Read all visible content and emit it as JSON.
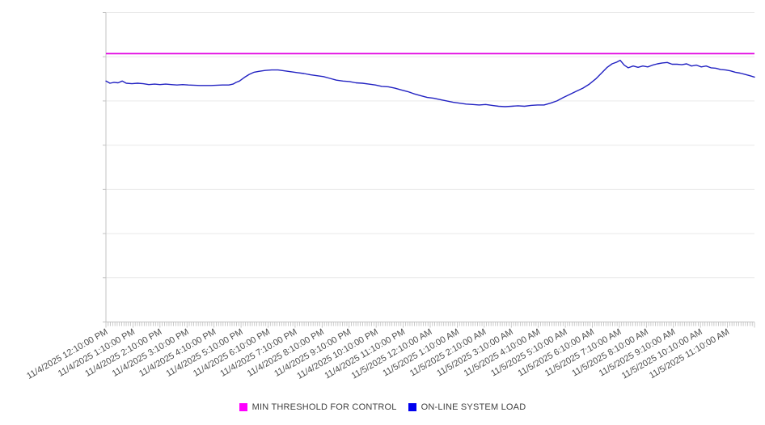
{
  "chart_data": {
    "type": "line",
    "grid": true,
    "legend_position": "bottom-center",
    "colors": {
      "background": "#ffffff",
      "grid": "#e9e9e9",
      "axis": "#c3c3c3",
      "tick": "#bdbdbd",
      "label_text": "#4d4d4d",
      "threshold_magenta": "#e000e0",
      "threshold_legend_magenta": "#ff00ff",
      "load_blue": "#2222c2",
      "load_legend_blue": "#0000ee"
    },
    "x_axis": {
      "hours_span": 24,
      "labeled_tick_interval": "1 hour",
      "minor_tick_interval_min": 5,
      "minor_tick_count": 288,
      "label_rotation_deg": -30,
      "labels": [
        "11/4/2025 12:10:00 PM",
        "11/4/2025 1:10:00 PM",
        "11/4/2025 2:10:00 PM",
        "11/4/2025 3:10:00 PM",
        "11/4/2025 4:10:00 PM",
        "11/4/2025 5:10:00 PM",
        "11/4/2025 6:10:00 PM",
        "11/4/2025 7:10:00 PM",
        "11/4/2025 8:10:00 PM",
        "11/4/2025 9:10:00 PM",
        "11/4/2025 10:10:00 PM",
        "11/4/2025 11:10:00 PM",
        "11/5/2025 12:10:00 AM",
        "11/5/2025 1:10:00 AM",
        "11/5/2025 2:10:00 AM",
        "11/5/2025 3:10:00 AM",
        "11/5/2025 4:10:00 AM",
        "11/5/2025 5:10:00 AM",
        "11/5/2025 6:10:00 AM",
        "11/5/2025 7:10:00 AM",
        "11/5/2025 8:10:00 AM",
        "11/5/2025 9:10:00 AM",
        "11/5/2025 10:10:00 AM",
        "11/5/2025 11:10:00 AM"
      ]
    },
    "y_axis": {
      "tick_labels_visible": false,
      "unit": "unlabeled gridline units",
      "ylim": [
        0,
        7
      ],
      "gridline_step": 1
    },
    "series": [
      {
        "name": "MIN THRESHOLD FOR CONTROL",
        "type": "threshold-line",
        "color": "#e000e0",
        "legend_color": "#ff00ff",
        "value": 6.07
      },
      {
        "name": "ON-LINE SYSTEM LOAD",
        "type": "line",
        "color": "#2222c2",
        "legend_color": "#0000ee",
        "points": [
          [
            0,
            5.45
          ],
          [
            0.15,
            5.4
          ],
          [
            0.3,
            5.42
          ],
          [
            0.45,
            5.41
          ],
          [
            0.6,
            5.45
          ],
          [
            0.75,
            5.4
          ],
          [
            0.96,
            5.39
          ],
          [
            1.17,
            5.4
          ],
          [
            1.38,
            5.39
          ],
          [
            1.59,
            5.37
          ],
          [
            1.8,
            5.38
          ],
          [
            2,
            5.37
          ],
          [
            2.21,
            5.38
          ],
          [
            2.42,
            5.37
          ],
          [
            2.63,
            5.36
          ],
          [
            2.84,
            5.37
          ],
          [
            3.05,
            5.36
          ],
          [
            3.47,
            5.35
          ],
          [
            3.89,
            5.35
          ],
          [
            4.31,
            5.36
          ],
          [
            4.55,
            5.36
          ],
          [
            4.7,
            5.38
          ],
          [
            4.82,
            5.42
          ],
          [
            4.94,
            5.45
          ],
          [
            5.12,
            5.53
          ],
          [
            5.3,
            5.6
          ],
          [
            5.48,
            5.65
          ],
          [
            5.66,
            5.67
          ],
          [
            5.89,
            5.69
          ],
          [
            6.13,
            5.7
          ],
          [
            6.37,
            5.7
          ],
          [
            6.61,
            5.68
          ],
          [
            6.85,
            5.66
          ],
          [
            7.09,
            5.64
          ],
          [
            7.33,
            5.62
          ],
          [
            7.57,
            5.59
          ],
          [
            7.81,
            5.57
          ],
          [
            8.05,
            5.55
          ],
          [
            8.29,
            5.51
          ],
          [
            8.53,
            5.47
          ],
          [
            8.77,
            5.45
          ],
          [
            9.01,
            5.44
          ],
          [
            9.25,
            5.41
          ],
          [
            9.49,
            5.4
          ],
          [
            9.73,
            5.38
          ],
          [
            9.97,
            5.36
          ],
          [
            10.21,
            5.33
          ],
          [
            10.45,
            5.32
          ],
          [
            10.69,
            5.29
          ],
          [
            10.93,
            5.25
          ],
          [
            11.17,
            5.21
          ],
          [
            11.41,
            5.16
          ],
          [
            11.65,
            5.12
          ],
          [
            11.89,
            5.08
          ],
          [
            12.13,
            5.06
          ],
          [
            12.37,
            5.03
          ],
          [
            12.61,
            5
          ],
          [
            12.85,
            4.97
          ],
          [
            13.09,
            4.95
          ],
          [
            13.33,
            4.93
          ],
          [
            13.57,
            4.92
          ],
          [
            13.81,
            4.91
          ],
          [
            14.05,
            4.92
          ],
          [
            14.29,
            4.9
          ],
          [
            14.53,
            4.88
          ],
          [
            14.77,
            4.87
          ],
          [
            15.01,
            4.88
          ],
          [
            15.25,
            4.89
          ],
          [
            15.49,
            4.88
          ],
          [
            15.73,
            4.9
          ],
          [
            15.97,
            4.91
          ],
          [
            16.21,
            4.91
          ],
          [
            16.45,
            4.95
          ],
          [
            16.69,
            5
          ],
          [
            16.93,
            5.08
          ],
          [
            17.17,
            5.15
          ],
          [
            17.41,
            5.22
          ],
          [
            17.65,
            5.29
          ],
          [
            17.89,
            5.38
          ],
          [
            18.13,
            5.5
          ],
          [
            18.37,
            5.65
          ],
          [
            18.55,
            5.76
          ],
          [
            18.73,
            5.84
          ],
          [
            18.91,
            5.88
          ],
          [
            19.03,
            5.92
          ],
          [
            19.18,
            5.81
          ],
          [
            19.33,
            5.75
          ],
          [
            19.51,
            5.79
          ],
          [
            19.69,
            5.76
          ],
          [
            19.87,
            5.79
          ],
          [
            20.05,
            5.77
          ],
          [
            20.23,
            5.81
          ],
          [
            20.41,
            5.84
          ],
          [
            20.59,
            5.86
          ],
          [
            20.77,
            5.87
          ],
          [
            20.95,
            5.83
          ],
          [
            21.13,
            5.83
          ],
          [
            21.31,
            5.82
          ],
          [
            21.49,
            5.84
          ],
          [
            21.67,
            5.79
          ],
          [
            21.85,
            5.81
          ],
          [
            22.03,
            5.77
          ],
          [
            22.21,
            5.79
          ],
          [
            22.39,
            5.75
          ],
          [
            22.57,
            5.74
          ],
          [
            22.75,
            5.71
          ],
          [
            22.93,
            5.7
          ],
          [
            23.11,
            5.68
          ],
          [
            23.29,
            5.65
          ],
          [
            23.47,
            5.63
          ],
          [
            23.65,
            5.6
          ],
          [
            23.83,
            5.57
          ],
          [
            24,
            5.54
          ]
        ]
      }
    ]
  }
}
